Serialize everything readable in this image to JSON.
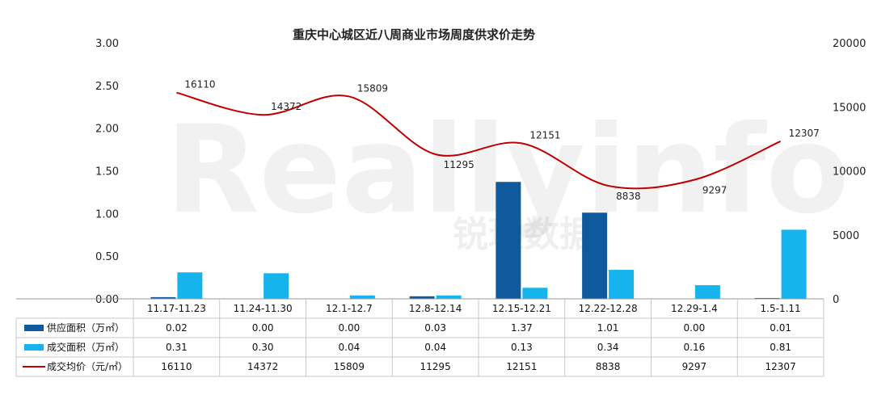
{
  "chart_data": {
    "type": "bar+line",
    "title": "重庆中心城区近八周商业市场周度供求价走势",
    "categories": [
      "11.17-11.23",
      "11.24-11.30",
      "12.1-12.7",
      "12.8-12.14",
      "12.15-12.21",
      "12.22-12.28",
      "12.29-1.4",
      "1.5-1.11"
    ],
    "series": [
      {
        "name": "供应面积（万㎡）",
        "type": "bar",
        "axis": "left",
        "color": "#0f5a9c",
        "values": [
          0.02,
          0.0,
          0.0,
          0.03,
          1.37,
          1.01,
          0.0,
          0.01
        ],
        "labels": [
          "0.02",
          "0.00",
          "0.00",
          "0.03",
          "1.37",
          "1.01",
          "0.00",
          "0.01"
        ]
      },
      {
        "name": "成交面积（万㎡）",
        "type": "bar",
        "axis": "left",
        "color": "#16b4ec",
        "values": [
          0.31,
          0.3,
          0.04,
          0.04,
          0.13,
          0.34,
          0.16,
          0.81
        ],
        "labels": [
          "0.31",
          "0.30",
          "0.04",
          "0.04",
          "0.13",
          "0.34",
          "0.16",
          "0.81"
        ]
      },
      {
        "name": "成交均价（元/㎡）",
        "type": "line",
        "axis": "right",
        "color": "#c00000",
        "values": [
          16110,
          14372,
          15809,
          11295,
          12151,
          8838,
          9297,
          12307
        ],
        "labels": [
          "16110",
          "14372",
          "15809",
          "11295",
          "12151",
          "8838",
          "9297",
          "12307"
        ]
      }
    ],
    "yleft": {
      "ticks": [
        "0.00",
        "0.50",
        "1.00",
        "1.50",
        "2.00",
        "2.50",
        "3.00"
      ],
      "range": [
        0,
        3
      ]
    },
    "yright": {
      "ticks": [
        "0",
        "5000",
        "10000",
        "15000",
        "20000"
      ],
      "range": [
        0,
        20000
      ]
    },
    "legend": "table-below",
    "grid": false
  },
  "watermark": {
    "text": "Reallyinfo",
    "cn": "锐理数据"
  }
}
